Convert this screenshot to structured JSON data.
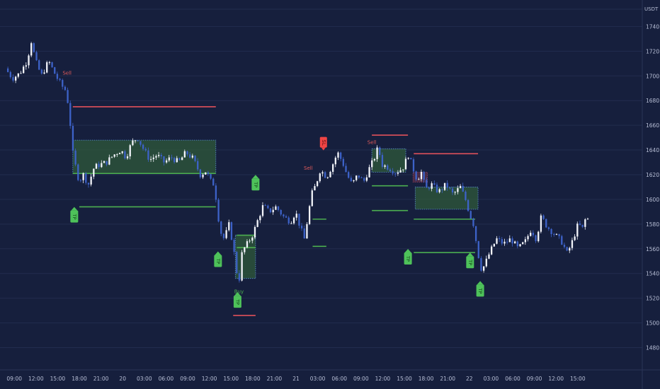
{
  "chart_data": {
    "type": "candlestick",
    "instrument_unit": "USDT",
    "ylim": [
      1468,
      1772
    ],
    "y_ticks": [
      1480,
      1500,
      1520,
      1540,
      1560,
      1580,
      1600,
      1620,
      1640,
      1660,
      1680,
      1700,
      1720,
      1740
    ],
    "y_tick_labels": [
      "1480.00",
      "1500.00",
      "1520.00",
      "1540.00",
      "1560.00",
      "1580.00",
      "1600.00",
      "1620.00",
      "1640.00",
      "1660.00",
      "1680.00",
      "1700.00",
      "1720.00",
      "1740.00"
    ],
    "x_range_hours": [
      0,
      89
    ],
    "x_ticks": [
      {
        "t": 1,
        "label": "09:00"
      },
      {
        "t": 4,
        "label": "12:00"
      },
      {
        "t": 7,
        "label": "15:00"
      },
      {
        "t": 10,
        "label": "18:00"
      },
      {
        "t": 13,
        "label": "21:00"
      },
      {
        "t": 16,
        "label": "20"
      },
      {
        "t": 19,
        "label": "03:00"
      },
      {
        "t": 22,
        "label": "06:00"
      },
      {
        "t": 25,
        "label": "09:00"
      },
      {
        "t": 28,
        "label": "12:00"
      },
      {
        "t": 31,
        "label": "15:00"
      },
      {
        "t": 34,
        "label": "18:00"
      },
      {
        "t": 37,
        "label": "21:00"
      },
      {
        "t": 40,
        "label": "21"
      },
      {
        "t": 43,
        "label": "03:00"
      },
      {
        "t": 46,
        "label": "06:00"
      },
      {
        "t": 49,
        "label": "09:00"
      },
      {
        "t": 52,
        "label": "12:00"
      },
      {
        "t": 55,
        "label": "15:00"
      },
      {
        "t": 58,
        "label": "18:00"
      },
      {
        "t": 61,
        "label": "21:00"
      },
      {
        "t": 64,
        "label": "22"
      },
      {
        "t": 67,
        "label": "03:00"
      },
      {
        "t": 70,
        "label": "06:00"
      },
      {
        "t": 73,
        "label": "09:00"
      },
      {
        "t": 76,
        "label": "12:00"
      },
      {
        "t": 79,
        "label": "15:00"
      }
    ],
    "price_path": [
      [
        0,
        1706
      ],
      [
        1,
        1698
      ],
      [
        2,
        1702
      ],
      [
        3,
        1712
      ],
      [
        3.6,
        1728
      ],
      [
        4.2,
        1712
      ],
      [
        5,
        1700
      ],
      [
        6,
        1712
      ],
      [
        7,
        1700
      ],
      [
        7.8,
        1692
      ],
      [
        8.4,
        1688
      ],
      [
        8.9,
        1670
      ],
      [
        9.2,
        1642
      ],
      [
        9.6,
        1630
      ],
      [
        10.2,
        1615
      ],
      [
        10.8,
        1620
      ],
      [
        11.5,
        1612
      ],
      [
        12.3,
        1626
      ],
      [
        13,
        1628
      ],
      [
        14,
        1630
      ],
      [
        15,
        1636
      ],
      [
        16,
        1640
      ],
      [
        16.7,
        1634
      ],
      [
        17.5,
        1646
      ],
      [
        18.3,
        1650
      ],
      [
        19,
        1642
      ],
      [
        20,
        1632
      ],
      [
        21,
        1636
      ],
      [
        22,
        1630
      ],
      [
        23,
        1634
      ],
      [
        24,
        1630
      ],
      [
        25,
        1638
      ],
      [
        26,
        1633
      ],
      [
        27,
        1620
      ],
      [
        27.8,
        1623
      ],
      [
        28.4,
        1615
      ],
      [
        28.9,
        1612
      ],
      [
        29.3,
        1596
      ],
      [
        29.7,
        1575
      ],
      [
        30.3,
        1568
      ],
      [
        31,
        1580
      ],
      [
        31.6,
        1560
      ],
      [
        32,
        1542
      ],
      [
        32.4,
        1536
      ],
      [
        32.8,
        1558
      ],
      [
        33.5,
        1564
      ],
      [
        34.3,
        1572
      ],
      [
        35,
        1584
      ],
      [
        35.7,
        1595
      ],
      [
        36.5,
        1590
      ],
      [
        37.5,
        1594
      ],
      [
        38.5,
        1586
      ],
      [
        39.5,
        1582
      ],
      [
        40.2,
        1590
      ],
      [
        40.8,
        1578
      ],
      [
        41.4,
        1568
      ],
      [
        41.9,
        1586
      ],
      [
        42.4,
        1604
      ],
      [
        43,
        1612
      ],
      [
        43.6,
        1624
      ],
      [
        44.5,
        1618
      ],
      [
        45.3,
        1628
      ],
      [
        46,
        1638
      ],
      [
        46.7,
        1630
      ],
      [
        47.3,
        1620
      ],
      [
        48,
        1612
      ],
      [
        48.8,
        1620
      ],
      [
        49.6,
        1614
      ],
      [
        50.3,
        1624
      ],
      [
        51,
        1632
      ],
      [
        51.6,
        1642
      ],
      [
        52.2,
        1628
      ],
      [
        53,
        1626
      ],
      [
        54,
        1622
      ],
      [
        55,
        1625
      ],
      [
        55.8,
        1636
      ],
      [
        56.4,
        1626
      ],
      [
        57,
        1616
      ],
      [
        57.6,
        1622
      ],
      [
        58.2,
        1608
      ],
      [
        59,
        1612
      ],
      [
        60,
        1606
      ],
      [
        61,
        1612
      ],
      [
        62,
        1604
      ],
      [
        63,
        1610
      ],
      [
        63.7,
        1600
      ],
      [
        64.3,
        1588
      ],
      [
        64.8,
        1580
      ],
      [
        65.3,
        1562
      ],
      [
        65.8,
        1544
      ],
      [
        66.3,
        1546
      ],
      [
        67,
        1556
      ],
      [
        68,
        1568
      ],
      [
        69,
        1564
      ],
      [
        70,
        1568
      ],
      [
        71,
        1560
      ],
      [
        72,
        1566
      ],
      [
        72.8,
        1576
      ],
      [
        73.5,
        1568
      ],
      [
        74.2,
        1586
      ],
      [
        75,
        1578
      ],
      [
        76,
        1572
      ],
      [
        77,
        1566
      ],
      [
        77.8,
        1556
      ],
      [
        78.5,
        1566
      ],
      [
        79.3,
        1580
      ],
      [
        80,
        1576
      ],
      [
        80.3,
        1584
      ]
    ],
    "signals": [
      {
        "label": "Sell",
        "t": 8.3,
        "price": 1701,
        "style": "small",
        "color": "#e05a5a"
      },
      {
        "label": "Buy",
        "t": 32.1,
        "price": 1524,
        "style": "small",
        "color": "#4caf50"
      },
      {
        "label": "Sell",
        "t": 41.7,
        "price": 1624,
        "style": "small",
        "color": "#e05a5a"
      },
      {
        "label": "SL",
        "t": 43.8,
        "price": 1646,
        "style": "flag-down",
        "color": "#f04545"
      },
      {
        "label": "Sell",
        "t": 50.5,
        "price": 1645,
        "style": "small",
        "color": "#e05a5a"
      }
    ],
    "tp_markers": [
      {
        "label": "TP",
        "t": 9.3,
        "price": 1591
      },
      {
        "label": "TP",
        "t": 34.4,
        "price": 1617
      },
      {
        "label": "TP",
        "t": 29.2,
        "price": 1555
      },
      {
        "label": "TP",
        "t": 31.9,
        "price": 1522
      },
      {
        "label": "TP",
        "t": 55.5,
        "price": 1557
      },
      {
        "label": "TP",
        "t": 64.1,
        "price": 1554
      },
      {
        "label": "TP",
        "t": 65.5,
        "price": 1531
      }
    ],
    "zones": [
      {
        "t0": 9.1,
        "t1": 28.9,
        "p0": 1621,
        "p1": 1648,
        "fill": "#2f5a3a",
        "border": "#5a8fd8"
      },
      {
        "t0": 31.6,
        "t1": 34.4,
        "p0": 1536,
        "p1": 1571,
        "fill": "#2f5a3a",
        "border": "#5a8fd8"
      },
      {
        "t0": 50.5,
        "t1": 55.2,
        "p0": 1622,
        "p1": 1641,
        "fill": "#2f5a3a",
        "border": "#5a8fd8"
      },
      {
        "t0": 56.5,
        "t1": 65.2,
        "p0": 1592,
        "p1": 1610,
        "fill": "#2f5a3a",
        "border": "#5a8fd8"
      },
      {
        "t0": 56.2,
        "t1": 58.2,
        "p0": 1614,
        "p1": 1622,
        "fill": "#5a3048",
        "border": "#9a4060"
      }
    ],
    "levels": [
      {
        "t0": 9.1,
        "t1": 28.9,
        "price": 1675,
        "color": "#e0505a"
      },
      {
        "t0": 9.1,
        "t1": 28.9,
        "price": 1621,
        "color": "#4caf50"
      },
      {
        "t0": 10,
        "t1": 28.9,
        "price": 1594,
        "color": "#4caf50"
      },
      {
        "t0": 31.8,
        "t1": 34.4,
        "price": 1571,
        "color": "#4caf50"
      },
      {
        "t0": 31.8,
        "t1": 34.4,
        "price": 1561,
        "color": "#4caf50"
      },
      {
        "t0": 31.3,
        "t1": 34.4,
        "price": 1506,
        "color": "#e0505a"
      },
      {
        "t0": 42.3,
        "t1": 44.2,
        "price": 1584,
        "color": "#4caf50"
      },
      {
        "t0": 42.3,
        "t1": 44.2,
        "price": 1562,
        "color": "#4caf50"
      },
      {
        "t0": 50.5,
        "t1": 55.5,
        "price": 1652,
        "color": "#e0505a"
      },
      {
        "t0": 50.5,
        "t1": 55.5,
        "price": 1611,
        "color": "#4caf50"
      },
      {
        "t0": 50.5,
        "t1": 55.5,
        "price": 1591,
        "color": "#4caf50"
      },
      {
        "t0": 56.3,
        "t1": 65.2,
        "price": 1637,
        "color": "#e0505a"
      },
      {
        "t0": 56.3,
        "t1": 64.8,
        "price": 1584,
        "color": "#4caf50"
      },
      {
        "t0": 56.3,
        "t1": 64.8,
        "price": 1557,
        "color": "#4caf50"
      }
    ],
    "grid": true,
    "legend": "none",
    "colors": {
      "background": "#161f3d",
      "grid": "#222c4e",
      "candle_up": "#f2f4fa",
      "candle_down": "#3d62c8",
      "axis_text": "#b8bfd6",
      "tp_marker": "#4ec25a"
    }
  }
}
